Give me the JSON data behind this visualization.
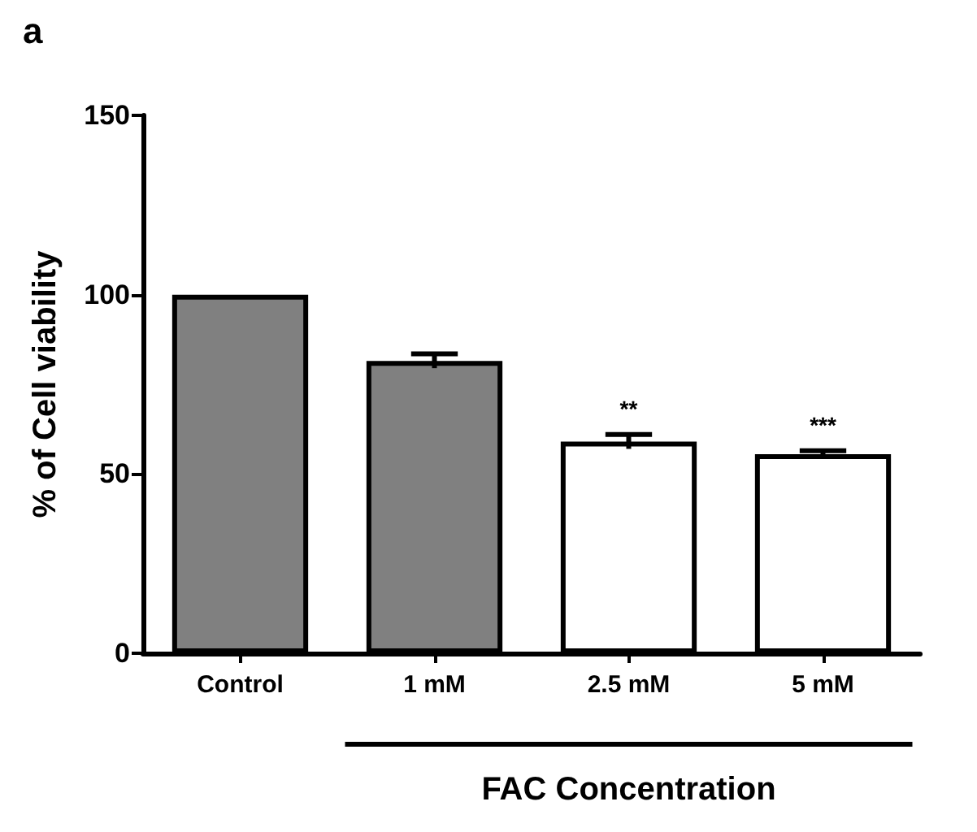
{
  "chart_data": {
    "type": "bar",
    "categories": [
      "Control",
      "1 mM",
      "2.5 mM",
      "5 mM"
    ],
    "values": [
      100,
      81.5,
      59,
      55.5
    ],
    "errors": [
      null,
      2,
      2,
      1
    ],
    "colors": [
      "#808080",
      "#808080",
      "#ffffff",
      "#ffffff"
    ],
    "ylabel": "% of Cell viability",
    "xlabel": "FAC Concentration",
    "ylim": [
      0,
      150
    ],
    "yticks": [
      0,
      50,
      100,
      150
    ],
    "grid": false,
    "annotations": [
      "a",
      {
        "text": "**",
        "x": "2.5 mM",
        "y": 61
      },
      {
        "text": "***",
        "x": "5 mM",
        "y": 56.5
      }
    ]
  }
}
